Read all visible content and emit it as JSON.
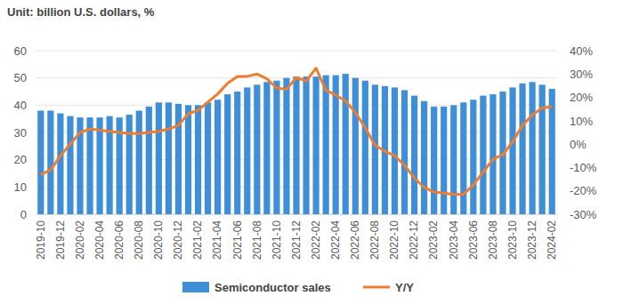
{
  "chart_data": {
    "type": "bar",
    "title": "Unit: billion U.S. dollars, %",
    "categories": [
      "2019-10",
      null,
      "2019-12",
      null,
      "2020-02",
      null,
      "2020-04",
      null,
      "2020-06",
      null,
      "2020-08",
      null,
      "2020-10",
      null,
      "2020-12",
      null,
      "2021-02",
      null,
      "2021-04",
      null,
      "2021-06",
      null,
      "2021-08",
      null,
      "2021-10",
      null,
      "2021-12",
      null,
      "2022-02",
      null,
      "2022-04",
      null,
      "2022-06",
      null,
      "2022-08",
      null,
      "2022-10",
      null,
      "2022-12",
      null,
      "2023-02",
      null,
      "2023-04",
      null,
      "2023-06",
      null,
      "2023-08",
      null,
      "2023-10",
      null,
      "2023-12",
      null,
      "2024-02"
    ],
    "series": [
      {
        "name": "Semiconductor sales",
        "type": "bar",
        "color": "#3f8fd8",
        "values": [
          38,
          38,
          37,
          36,
          35.5,
          35.5,
          35.5,
          36,
          35.5,
          36.5,
          38,
          39.5,
          41,
          41,
          40.5,
          40,
          40,
          41,
          42,
          44,
          45,
          46.5,
          47.5,
          48.5,
          49,
          50,
          50.5,
          50.5,
          50.5,
          51,
          51,
          51.5,
          50,
          49,
          47.5,
          47,
          46.5,
          45.5,
          43.5,
          41.5,
          39.5,
          39.5,
          40,
          41,
          42,
          43.5,
          44,
          45,
          46.5,
          48,
          48.5,
          47.5,
          46
        ]
      },
      {
        "name": "Y/Y",
        "type": "line",
        "axis": "y2",
        "color": "#ed7d31",
        "values": [
          -13,
          -11,
          -5,
          0,
          5,
          6.5,
          6,
          5.5,
          5,
          4.5,
          4.5,
          5,
          5.5,
          6.5,
          8,
          13,
          14.5,
          18,
          21.5,
          26,
          29,
          29,
          30,
          28,
          24,
          23.5,
          28.5,
          27,
          32.5,
          23,
          21,
          18.5,
          13.5,
          7,
          -0.5,
          -3,
          -5,
          -9,
          -14.5,
          -18.5,
          -20.5,
          -21,
          -21.5,
          -21.5,
          -17.5,
          -12,
          -6.5,
          -4.5,
          1,
          8,
          12.5,
          15.5,
          16
        ]
      }
    ],
    "ylim": [
      0,
      60
    ],
    "yticks": [
      0,
      10,
      20,
      30,
      40,
      50,
      60
    ],
    "y2lim": [
      -30,
      40
    ],
    "y2ticks": [
      {
        "value": -30,
        "label": "-30%"
      },
      {
        "value": -20,
        "label": "-20%"
      },
      {
        "value": -10,
        "label": "-10%"
      },
      {
        "value": 0,
        "label": "0%"
      },
      {
        "value": 10,
        "label": "10%"
      },
      {
        "value": 20,
        "label": "20%"
      },
      {
        "value": 30,
        "label": "30%"
      },
      {
        "value": 40,
        "label": "40%"
      }
    ],
    "grid": true,
    "legend": "bottom"
  }
}
